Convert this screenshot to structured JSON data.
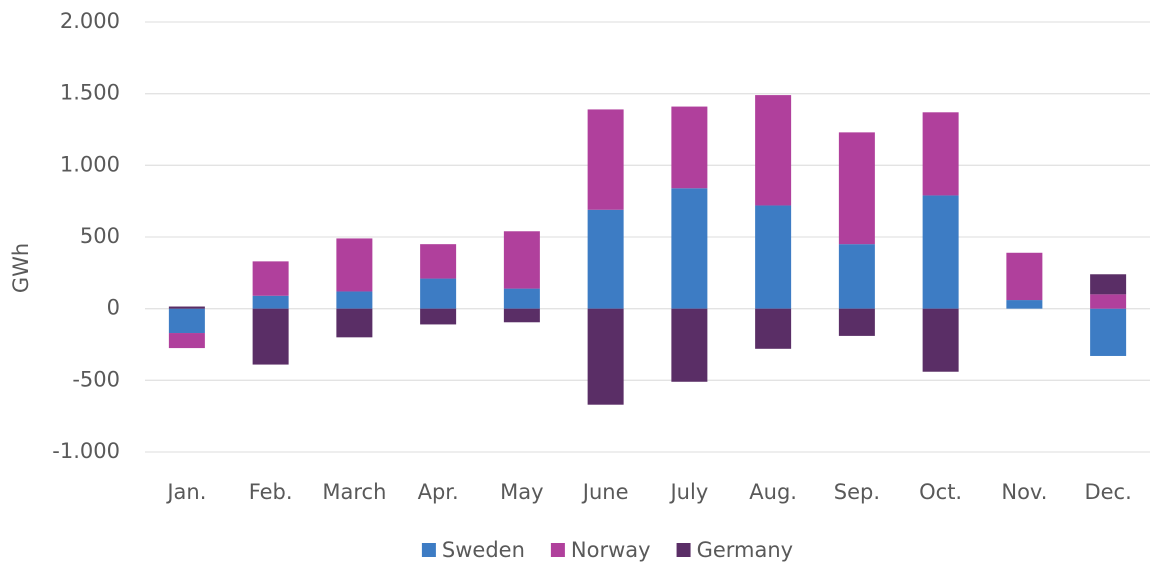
{
  "chart_data": {
    "type": "bar",
    "stacked": true,
    "y_label": "GWh",
    "categories": [
      "Jan.",
      "Feb.",
      "March",
      "Apr.",
      "May",
      "June",
      "July",
      "Aug.",
      "Sep.",
      "Oct.",
      "Nov.",
      "Dec."
    ],
    "series": [
      {
        "name": "Sweden",
        "color": "#3d7cc4",
        "values": [
          -170,
          90,
          120,
          210,
          140,
          690,
          840,
          720,
          450,
          790,
          60,
          -330
        ]
      },
      {
        "name": "Norway",
        "color": "#b0409c",
        "values": [
          -105,
          240,
          370,
          240,
          400,
          700,
          570,
          770,
          780,
          580,
          330,
          100
        ]
      },
      {
        "name": "Germany",
        "color": "#5a2e66",
        "values": [
          15,
          -390,
          -200,
          -110,
          -95,
          -670,
          -510,
          -280,
          -190,
          -440,
          0,
          140
        ]
      }
    ],
    "ylim": [
      -1000,
      2000
    ],
    "yticks": [
      {
        "value": -1000,
        "label": "-1.000"
      },
      -500,
      0,
      500,
      {
        "value": 1000,
        "label": "1.000"
      },
      {
        "value": 1500,
        "label": "1.500"
      },
      {
        "value": 2000,
        "label": "2.000"
      }
    ],
    "grid": true,
    "legend": "bottom"
  }
}
